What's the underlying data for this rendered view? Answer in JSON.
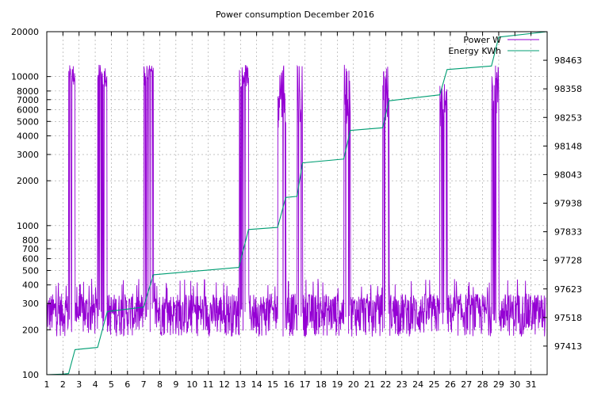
{
  "chart_data": {
    "type": "line",
    "title": "Power consumption December 2016",
    "xlabel": "",
    "ylabel": "",
    "x_tick_labels": [
      "1",
      "2",
      "3",
      "4",
      "5",
      "6",
      "7",
      "8",
      "9",
      "10",
      "11",
      "12",
      "13",
      "14",
      "15",
      "16",
      "17",
      "18",
      "19",
      "20",
      "21",
      "22",
      "23",
      "24",
      "25",
      "26",
      "27",
      "28",
      "29",
      "30",
      "31"
    ],
    "xlim": [
      1,
      32
    ],
    "y_left": {
      "scale": "log",
      "ylim": [
        100,
        20000
      ],
      "tick_values": [
        100,
        200,
        300,
        400,
        500,
        600,
        700,
        800,
        1000,
        2000,
        3000,
        4000,
        5000,
        6000,
        7000,
        8000,
        10000,
        20000
      ],
      "tick_labels": [
        "100",
        "200",
        "300",
        "400",
        "500",
        "600",
        "700",
        "800",
        "1000",
        "2000",
        "3000",
        "4000",
        "5000",
        "6000",
        "7000",
        "8000",
        "10000",
        "20000"
      ]
    },
    "y_right": {
      "scale": "linear",
      "ylim": [
        97308,
        98568
      ],
      "tick_values": [
        97413,
        97518,
        97623,
        97728,
        97833,
        97938,
        98043,
        98148,
        98253,
        98358,
        98463
      ],
      "tick_labels": [
        "97413",
        "97518",
        "97623",
        "97728",
        "97833",
        "97938",
        "98043",
        "98148",
        "98253",
        "98358",
        "98463"
      ]
    },
    "grid": true,
    "legend_position": "top-right",
    "series": [
      {
        "name": "Power W",
        "axis": "left",
        "color": "#9400d3",
        "baseline_range": [
          180,
          350
        ],
        "high_bursts": [
          {
            "start": 2.35,
            "end": 2.75,
            "low": 8500,
            "high": 12000
          },
          {
            "start": 4.15,
            "end": 4.75,
            "low": 8500,
            "high": 12000
          },
          {
            "start": 7.0,
            "end": 7.6,
            "low": 8500,
            "high": 12000
          },
          {
            "start": 12.9,
            "end": 13.5,
            "low": 8500,
            "high": 12000
          },
          {
            "start": 15.3,
            "end": 15.8,
            "low": 4500,
            "high": 12000
          },
          {
            "start": 16.5,
            "end": 16.85,
            "low": 4500,
            "high": 12000
          },
          {
            "start": 19.4,
            "end": 19.8,
            "low": 4500,
            "high": 12000
          },
          {
            "start": 21.8,
            "end": 22.2,
            "low": 4500,
            "high": 12000
          },
          {
            "start": 25.35,
            "end": 25.8,
            "low": 4500,
            "high": 9000
          },
          {
            "start": 28.55,
            "end": 29.0,
            "low": 5000,
            "high": 12000
          }
        ]
      },
      {
        "name": "Energy KWh",
        "axis": "right",
        "color": "#009e73",
        "x": [
          1.0,
          2.0,
          2.35,
          2.75,
          4.15,
          4.75,
          7.0,
          7.6,
          12.9,
          13.5,
          15.3,
          15.8,
          16.5,
          16.85,
          19.4,
          19.8,
          21.8,
          22.2,
          25.35,
          25.8,
          28.55,
          29.0,
          32.0
        ],
        "values": [
          97308,
          97310,
          97312,
          97400,
          97408,
          97540,
          97556,
          97675,
          97702,
          97841,
          97849,
          97959,
          97963,
          98086,
          98100,
          98205,
          98215,
          98314,
          98336,
          98429,
          98442,
          98548,
          98568
        ]
      }
    ]
  }
}
